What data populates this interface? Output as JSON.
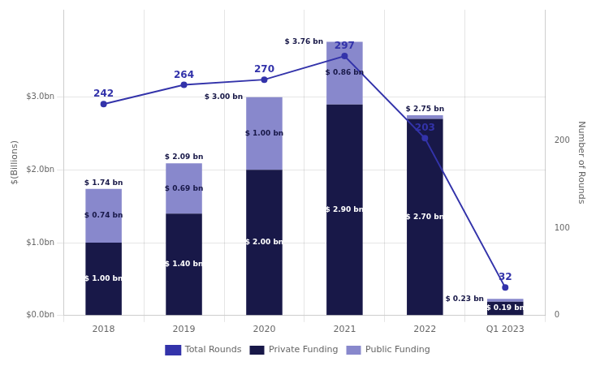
{
  "chart_data": {
    "type": "bar",
    "stacked": true,
    "categories": [
      "2018",
      "2019",
      "2020",
      "2021",
      "2022",
      "Q1 2023"
    ],
    "series": [
      {
        "name": "Private Funding",
        "type": "bar",
        "color": "#181848",
        "values": [
          1.0,
          1.4,
          2.0,
          2.9,
          2.7,
          0.19
        ],
        "value_labels": [
          "$ 1.00 bn",
          "$ 1.40 bn",
          "$ 2.00 bn",
          "$ 2.90 bn",
          "$ 2.70 bn",
          "$ 0.19 bn"
        ]
      },
      {
        "name": "Public Funding",
        "type": "bar",
        "color": "#8888cc",
        "values": [
          0.74,
          0.69,
          1.0,
          0.86,
          0.05,
          0.04
        ],
        "value_labels": [
          "$ 0.74 bn",
          "$ 0.69 bn",
          "$ 1.00 bn",
          "$ 0.86 bn",
          null,
          null
        ]
      },
      {
        "name": "Total Rounds",
        "type": "line",
        "axis": "y2",
        "color": "#3333aa",
        "values": [
          242,
          264,
          270,
          297,
          203,
          32
        ],
        "data_labels": true
      }
    ],
    "totals": {
      "values": [
        1.74,
        2.09,
        3.0,
        3.76,
        2.75,
        0.23
      ],
      "value_labels": [
        "$ 1.74 bn",
        "$ 2.09 bn",
        "$ 3.00 bn",
        "$ 3.76 bn",
        "$ 2.75 bn",
        "$ 0.23 bn"
      ]
    },
    "ylabel": "$(Billions)",
    "y2label": "Number of Rounds",
    "ylim": [
      0,
      4.2
    ],
    "yticks": [
      {
        "value": 0.0,
        "label": "$0.0bn"
      },
      {
        "value": 1.0,
        "label": "$1.0bn"
      },
      {
        "value": 2.0,
        "label": "$2.0bn"
      },
      {
        "value": 3.0,
        "label": "$3.0bn"
      }
    ],
    "y2lim": [
      0,
      350
    ],
    "y2ticks": [
      0,
      100,
      200
    ],
    "grid": true,
    "legend": "bottom"
  }
}
